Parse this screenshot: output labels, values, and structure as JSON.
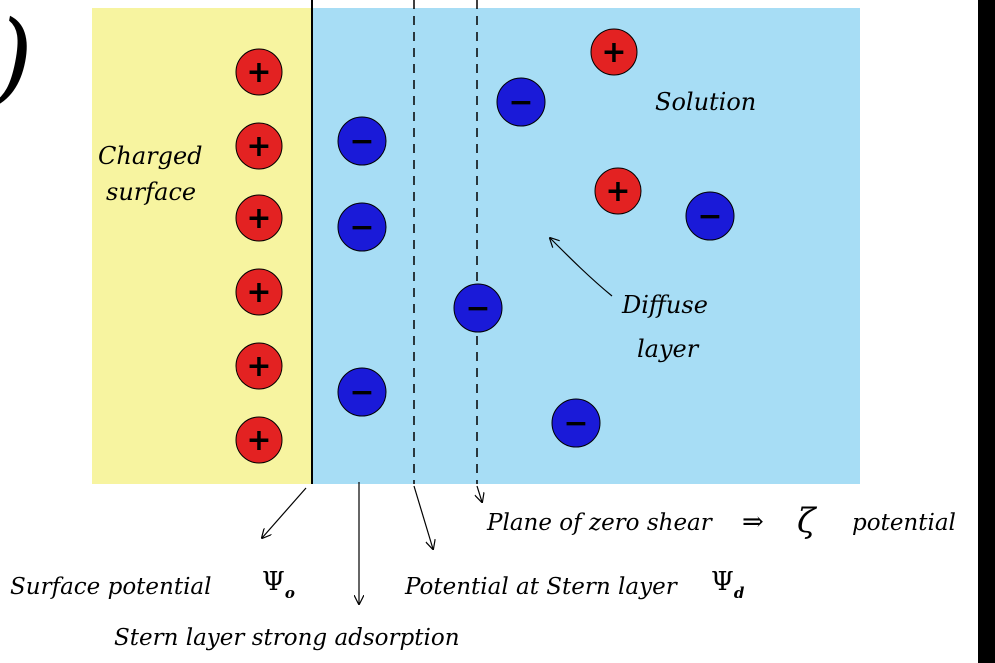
{
  "figure_marker": ")",
  "regions": {
    "surface_label_line1": "Charged",
    "surface_label_line2": "surface",
    "solution_label": "Solution",
    "diffuse_label_line1": "Diffuse",
    "diffuse_label_line2": "layer",
    "surface_color": "#f7f4a0",
    "solution_color": "#a7ddf5"
  },
  "ions": {
    "positive_symbol": "+",
    "negative_symbol": "−",
    "positive_color": "#e32222",
    "negative_color": "#1a1ad8"
  },
  "annotations": {
    "surface_potential": "Surface potential",
    "surface_potential_symbol": "Ψ",
    "surface_potential_subscript": "o",
    "stern_layer": "Stern layer strong adsorption",
    "stern_potential": "Potential at Stern layer",
    "stern_potential_symbol": "Ψ",
    "stern_potential_subscript": "d",
    "shear_plane": "Plane of zero shear",
    "shear_arrow": "⇒",
    "zeta_symbol": "ζ",
    "zeta_text": "potential"
  }
}
